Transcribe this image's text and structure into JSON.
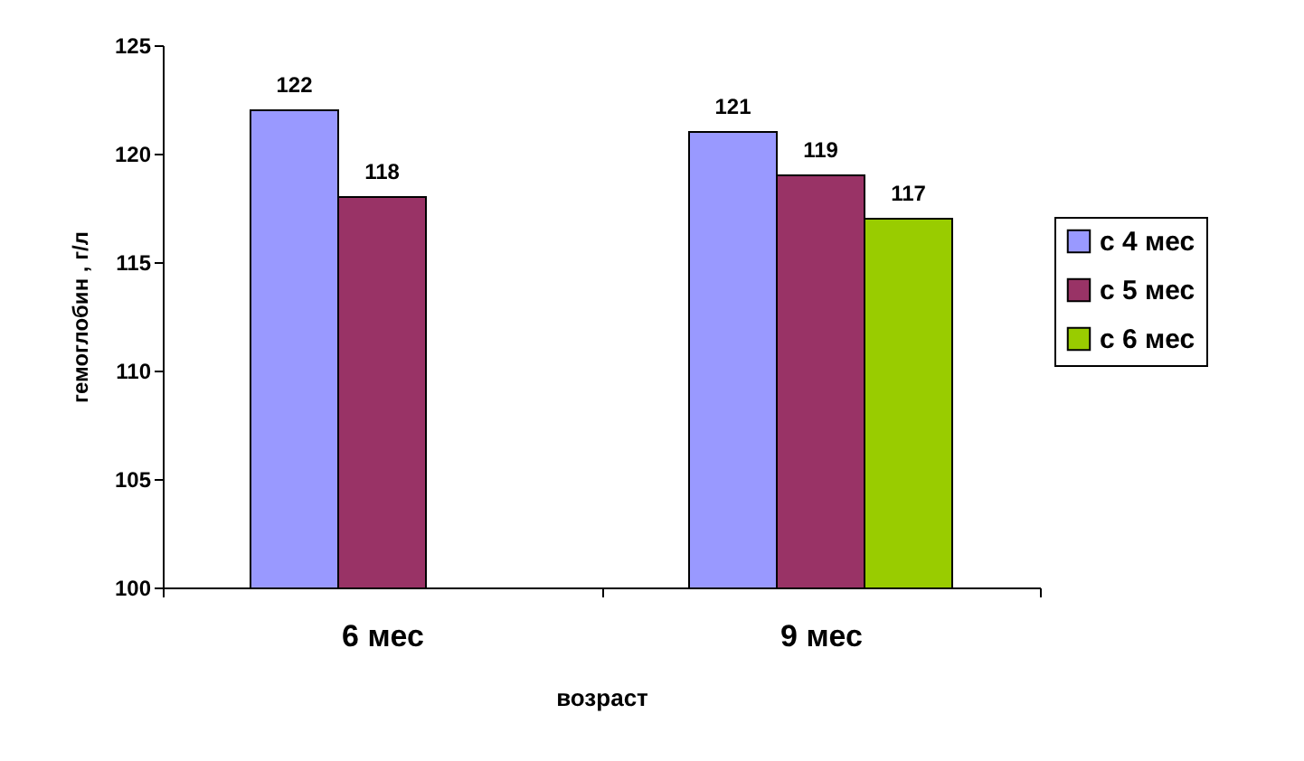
{
  "chart_data": {
    "type": "bar",
    "categories": [
      "6 мес",
      "9 мес"
    ],
    "series": [
      {
        "name": "с 4 мес",
        "color": "#9999ff",
        "values": [
          122,
          121
        ]
      },
      {
        "name": "с 5 мес",
        "color": "#993366",
        "values": [
          118,
          119
        ]
      },
      {
        "name": "с 6 мес",
        "color": "#99cc00",
        "values": [
          null,
          117
        ]
      }
    ],
    "xlabel": "возраст",
    "ylabel": "гемоглобин , г/л",
    "ylim": [
      100,
      125
    ],
    "yticks": [
      100,
      105,
      110,
      115,
      120,
      125
    ],
    "data_labels": true,
    "grid": false,
    "legend": "right"
  }
}
